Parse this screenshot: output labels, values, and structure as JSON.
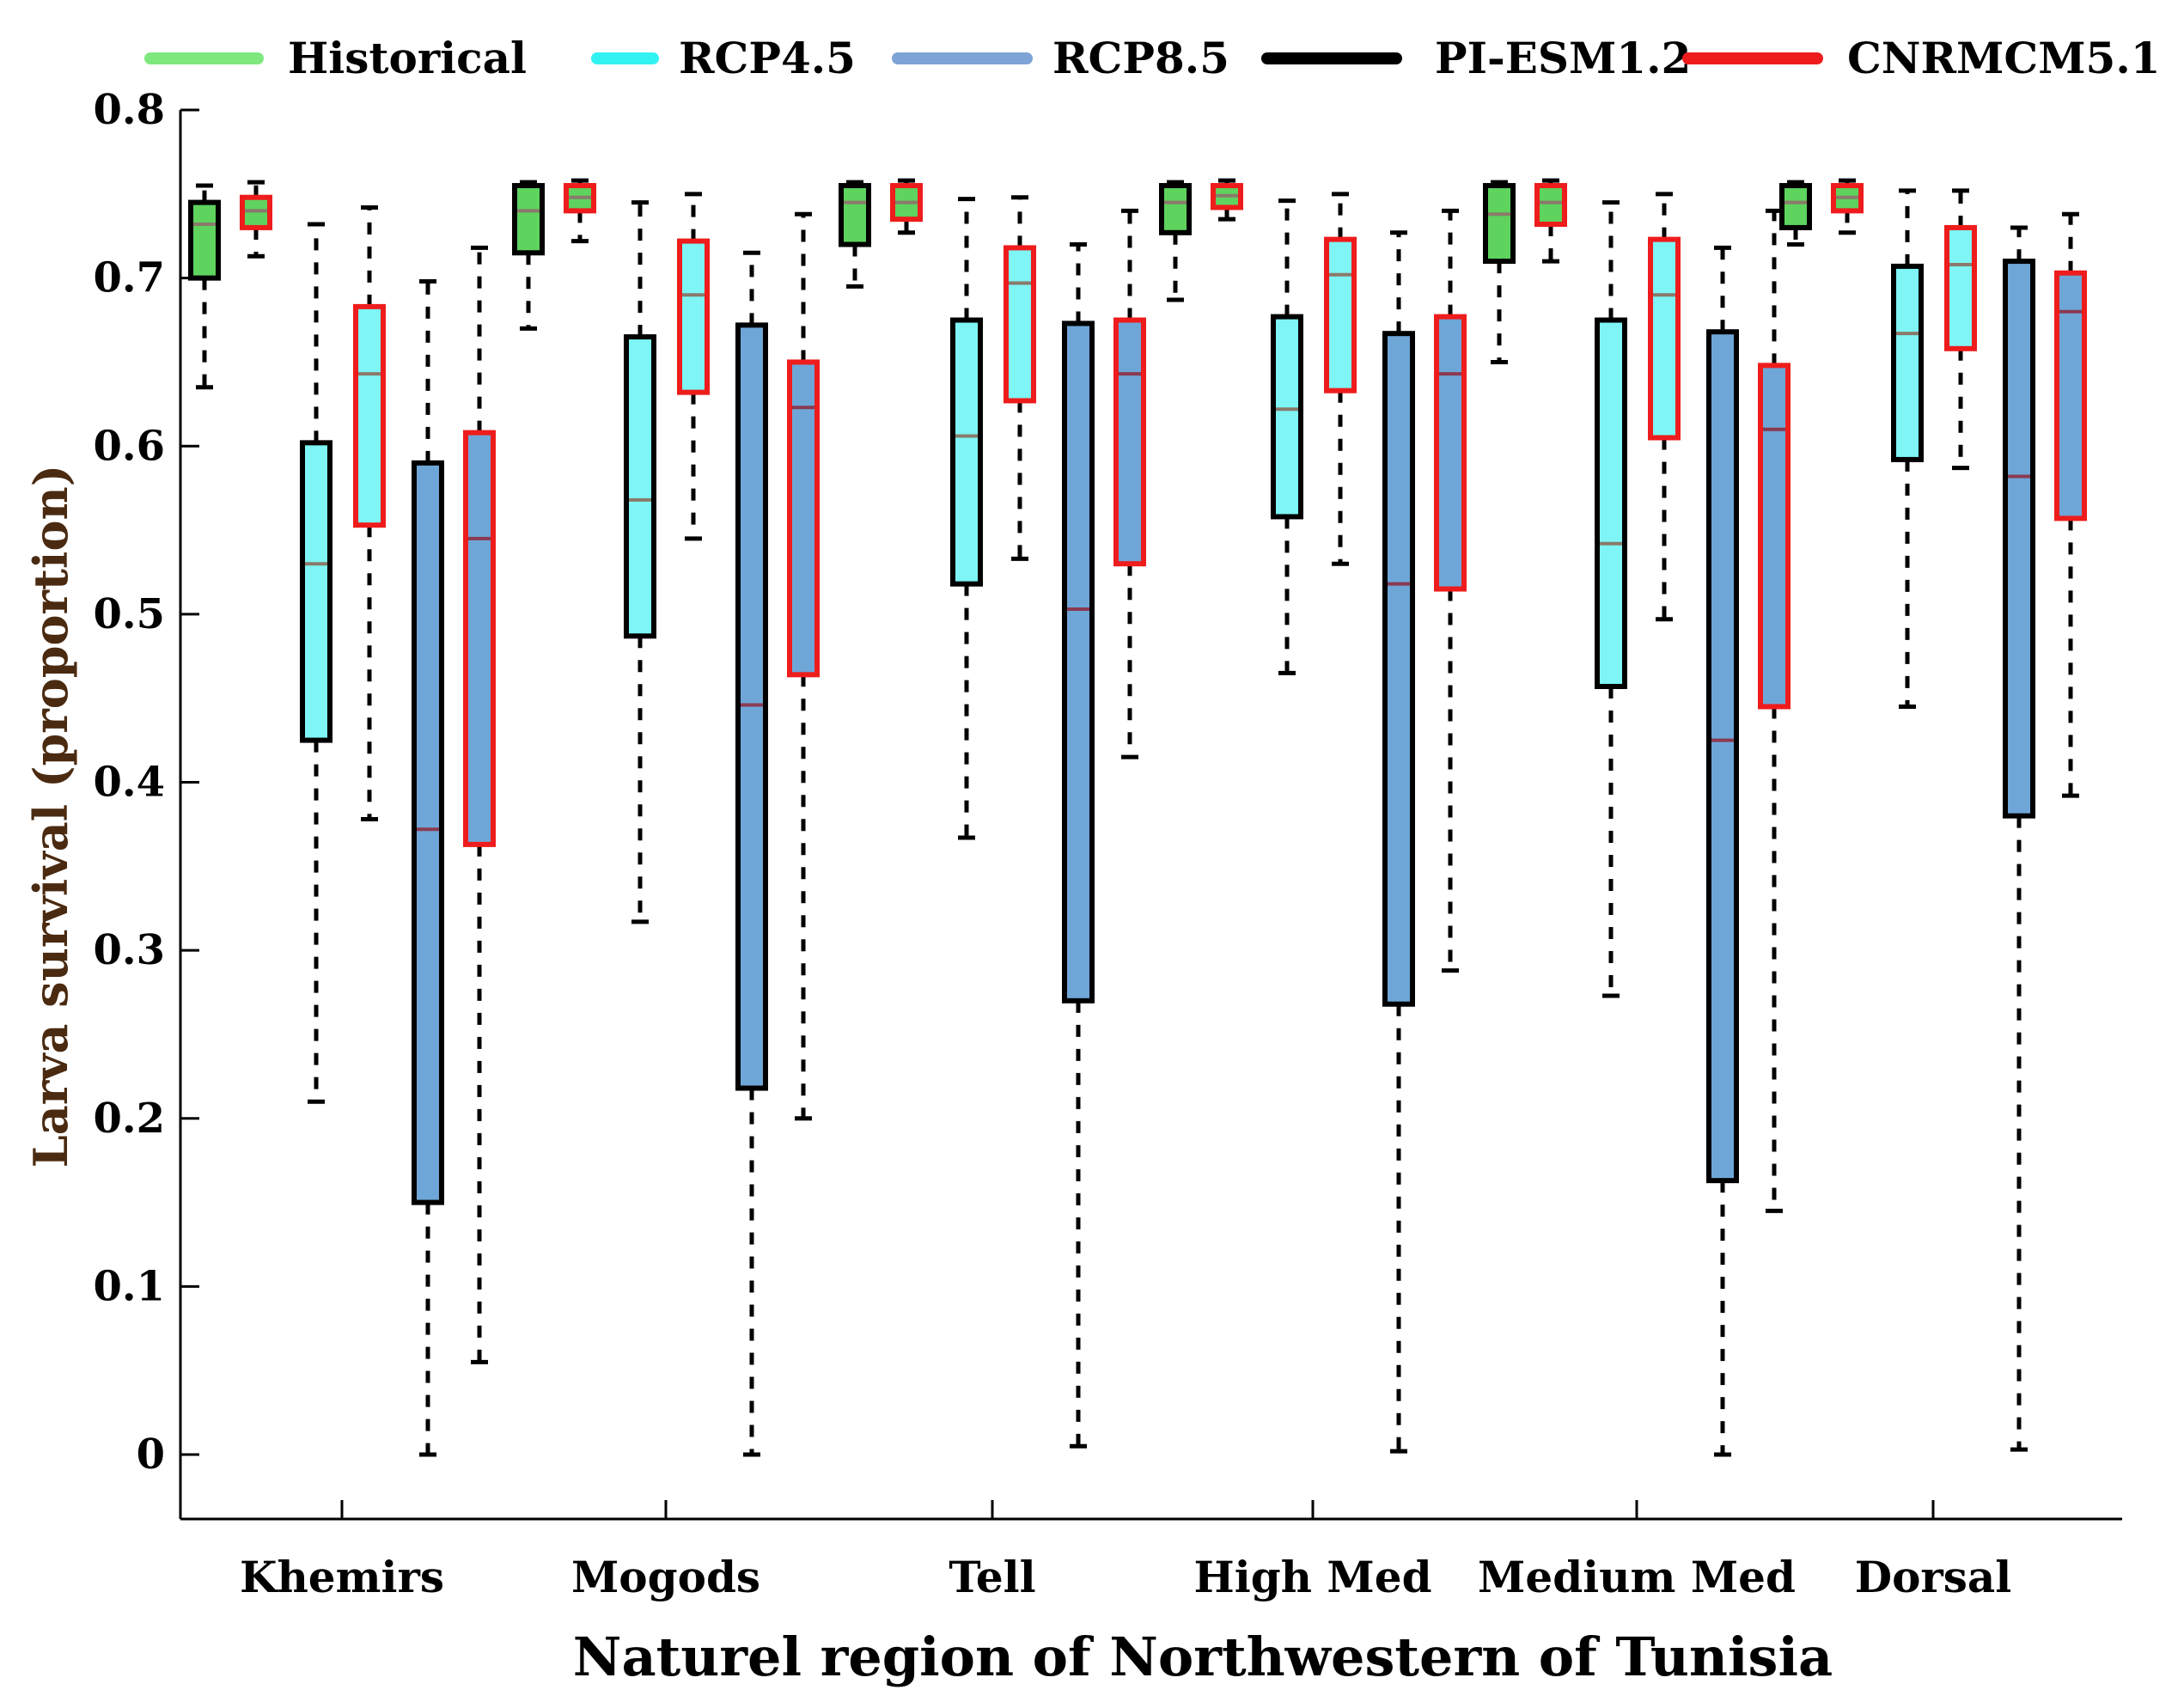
{
  "chart_data": {
    "type": "box",
    "title": "",
    "xlabel": "Naturel region of Northwestern of Tunisia",
    "ylabel": "Larva survival (proportion)",
    "ylim": [
      -0.04,
      0.8
    ],
    "yticks": [
      0,
      0.1,
      0.2,
      0.3,
      0.4,
      0.5,
      0.6,
      0.7,
      0.8
    ],
    "ytick_labels": [
      "0",
      "0.1",
      "0.2",
      "0.3",
      "0.4",
      "0.5",
      "0.6",
      "0.7",
      "0.8"
    ],
    "categories": [
      "Khemirs",
      "Mogods",
      "Tell",
      "High Med",
      "Medium Med",
      "Dorsal"
    ],
    "legend": [
      {
        "label": "Historical",
        "color": "#7ee87e"
      },
      {
        "label": "RCP4.5",
        "color": "#33f2f2"
      },
      {
        "label": "RCP8.5",
        "color": "#7ea4d6"
      },
      {
        "label": "PI-ESM1.2",
        "color": "#000000"
      },
      {
        "label": "CNRMCM5.1",
        "color": "#ee1c1c"
      }
    ],
    "fill_colors": {
      "Historical": "#5ed35e",
      "RCP4.5": "#7ff5f5",
      "RCP8.5": "#6fa6d8"
    },
    "outline_colors": {
      "PI-ESM1.2": "#000000",
      "CNRMCM5.1": "#ee1c1c"
    },
    "groups": [
      {
        "region": "Khemirs",
        "boxes": [
          {
            "scenario": "Historical",
            "model": "PI-ESM1.2",
            "whisker_low": 0.635,
            "q1": 0.7,
            "median": 0.732,
            "q3": 0.745,
            "whisker_high": 0.755
          },
          {
            "scenario": "Historical",
            "model": "CNRMCM5.1",
            "whisker_low": 0.713,
            "q1": 0.73,
            "median": 0.74,
            "q3": 0.748,
            "whisker_high": 0.757
          },
          {
            "scenario": "RCP4.5",
            "model": "PI-ESM1.2",
            "whisker_low": 0.21,
            "q1": 0.425,
            "median": 0.53,
            "q3": 0.602,
            "whisker_high": 0.732
          },
          {
            "scenario": "RCP4.5",
            "model": "CNRMCM5.1",
            "whisker_low": 0.378,
            "q1": 0.553,
            "median": 0.643,
            "q3": 0.683,
            "whisker_high": 0.742
          },
          {
            "scenario": "RCP8.5",
            "model": "PI-ESM1.2",
            "whisker_low": 0.0,
            "q1": 0.15,
            "median": 0.372,
            "q3": 0.59,
            "whisker_high": 0.698
          },
          {
            "scenario": "RCP8.5",
            "model": "CNRMCM5.1",
            "whisker_low": 0.055,
            "q1": 0.363,
            "median": 0.545,
            "q3": 0.608,
            "whisker_high": 0.718
          }
        ]
      },
      {
        "region": "Mogods",
        "boxes": [
          {
            "scenario": "Historical",
            "model": "PI-ESM1.2",
            "whisker_low": 0.67,
            "q1": 0.715,
            "median": 0.74,
            "q3": 0.755,
            "whisker_high": 0.757
          },
          {
            "scenario": "Historical",
            "model": "CNRMCM5.1",
            "whisker_low": 0.722,
            "q1": 0.74,
            "median": 0.748,
            "q3": 0.755,
            "whisker_high": 0.758
          },
          {
            "scenario": "RCP4.5",
            "model": "PI-ESM1.2",
            "whisker_low": 0.317,
            "q1": 0.487,
            "median": 0.568,
            "q3": 0.665,
            "whisker_high": 0.745
          },
          {
            "scenario": "RCP4.5",
            "model": "CNRMCM5.1",
            "whisker_low": 0.545,
            "q1": 0.632,
            "median": 0.69,
            "q3": 0.722,
            "whisker_high": 0.75
          },
          {
            "scenario": "RCP8.5",
            "model": "PI-ESM1.2",
            "whisker_low": 0.0,
            "q1": 0.218,
            "median": 0.446,
            "q3": 0.672,
            "whisker_high": 0.715
          },
          {
            "scenario": "RCP8.5",
            "model": "CNRMCM5.1",
            "whisker_low": 0.2,
            "q1": 0.464,
            "median": 0.623,
            "q3": 0.65,
            "whisker_high": 0.738
          }
        ]
      },
      {
        "region": "Tell",
        "boxes": [
          {
            "scenario": "Historical",
            "model": "PI-ESM1.2",
            "whisker_low": 0.695,
            "q1": 0.72,
            "median": 0.745,
            "q3": 0.755,
            "whisker_high": 0.757
          },
          {
            "scenario": "Historical",
            "model": "CNRMCM5.1",
            "whisker_low": 0.727,
            "q1": 0.735,
            "median": 0.745,
            "q3": 0.755,
            "whisker_high": 0.758
          },
          {
            "scenario": "RCP4.5",
            "model": "PI-ESM1.2",
            "whisker_low": 0.367,
            "q1": 0.518,
            "median": 0.606,
            "q3": 0.675,
            "whisker_high": 0.747
          },
          {
            "scenario": "RCP4.5",
            "model": "CNRMCM5.1",
            "whisker_low": 0.533,
            "q1": 0.627,
            "median": 0.697,
            "q3": 0.718,
            "whisker_high": 0.748
          },
          {
            "scenario": "RCP8.5",
            "model": "PI-ESM1.2",
            "whisker_low": 0.005,
            "q1": 0.27,
            "median": 0.503,
            "q3": 0.673,
            "whisker_high": 0.72
          },
          {
            "scenario": "RCP8.5",
            "model": "CNRMCM5.1",
            "whisker_low": 0.415,
            "q1": 0.53,
            "median": 0.643,
            "q3": 0.675,
            "whisker_high": 0.74
          }
        ]
      },
      {
        "region": "High Med",
        "boxes": [
          {
            "scenario": "Historical",
            "model": "PI-ESM1.2",
            "whisker_low": 0.687,
            "q1": 0.727,
            "median": 0.745,
            "q3": 0.755,
            "whisker_high": 0.757
          },
          {
            "scenario": "Historical",
            "model": "CNRMCM5.1",
            "whisker_low": 0.735,
            "q1": 0.742,
            "median": 0.749,
            "q3": 0.755,
            "whisker_high": 0.758
          },
          {
            "scenario": "RCP4.5",
            "model": "PI-ESM1.2",
            "whisker_low": 0.465,
            "q1": 0.558,
            "median": 0.622,
            "q3": 0.677,
            "whisker_high": 0.746
          },
          {
            "scenario": "RCP4.5",
            "model": "CNRMCM5.1",
            "whisker_low": 0.53,
            "q1": 0.633,
            "median": 0.702,
            "q3": 0.723,
            "whisker_high": 0.75
          },
          {
            "scenario": "RCP8.5",
            "model": "PI-ESM1.2",
            "whisker_low": 0.002,
            "q1": 0.268,
            "median": 0.518,
            "q3": 0.667,
            "whisker_high": 0.727
          },
          {
            "scenario": "RCP8.5",
            "model": "CNRMCM5.1",
            "whisker_low": 0.288,
            "q1": 0.515,
            "median": 0.643,
            "q3": 0.677,
            "whisker_high": 0.74
          }
        ]
      },
      {
        "region": "Medium Med",
        "boxes": [
          {
            "scenario": "Historical",
            "model": "PI-ESM1.2",
            "whisker_low": 0.65,
            "q1": 0.71,
            "median": 0.738,
            "q3": 0.755,
            "whisker_high": 0.757
          },
          {
            "scenario": "Historical",
            "model": "CNRMCM5.1",
            "whisker_low": 0.71,
            "q1": 0.732,
            "median": 0.745,
            "q3": 0.755,
            "whisker_high": 0.758
          },
          {
            "scenario": "RCP4.5",
            "model": "PI-ESM1.2",
            "whisker_low": 0.273,
            "q1": 0.457,
            "median": 0.542,
            "q3": 0.675,
            "whisker_high": 0.745
          },
          {
            "scenario": "RCP4.5",
            "model": "CNRMCM5.1",
            "whisker_low": 0.497,
            "q1": 0.605,
            "median": 0.69,
            "q3": 0.723,
            "whisker_high": 0.75
          },
          {
            "scenario": "RCP8.5",
            "model": "PI-ESM1.2",
            "whisker_low": 0.0,
            "q1": 0.163,
            "median": 0.425,
            "q3": 0.668,
            "whisker_high": 0.718
          },
          {
            "scenario": "RCP8.5",
            "model": "CNRMCM5.1",
            "whisker_low": 0.145,
            "q1": 0.445,
            "median": 0.61,
            "q3": 0.648,
            "whisker_high": 0.74
          }
        ]
      },
      {
        "region": "Dorsal",
        "boxes": [
          {
            "scenario": "Historical",
            "model": "PI-ESM1.2",
            "whisker_low": 0.72,
            "q1": 0.73,
            "median": 0.745,
            "q3": 0.755,
            "whisker_high": 0.757
          },
          {
            "scenario": "Historical",
            "model": "CNRMCM5.1",
            "whisker_low": 0.727,
            "q1": 0.74,
            "median": 0.748,
            "q3": 0.755,
            "whisker_high": 0.758
          },
          {
            "scenario": "RCP4.5",
            "model": "PI-ESM1.2",
            "whisker_low": 0.445,
            "q1": 0.592,
            "median": 0.667,
            "q3": 0.707,
            "whisker_high": 0.752
          },
          {
            "scenario": "RCP4.5",
            "model": "CNRMCM5.1",
            "whisker_low": 0.587,
            "q1": 0.658,
            "median": 0.708,
            "q3": 0.73,
            "whisker_high": 0.752
          },
          {
            "scenario": "RCP8.5",
            "model": "PI-ESM1.2",
            "whisker_low": 0.003,
            "q1": 0.38,
            "median": 0.582,
            "q3": 0.71,
            "whisker_high": 0.73
          },
          {
            "scenario": "RCP8.5",
            "model": "CNRMCM5.1",
            "whisker_low": 0.392,
            "q1": 0.557,
            "median": 0.68,
            "q3": 0.703,
            "whisker_high": 0.738
          }
        ]
      }
    ]
  }
}
